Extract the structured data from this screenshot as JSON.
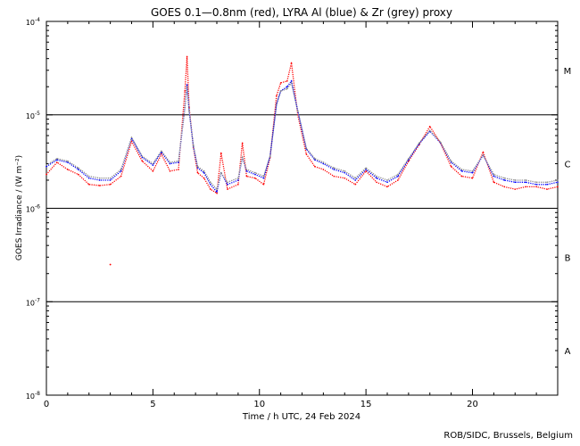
{
  "chart_data": {
    "type": "scatter",
    "title": "GOES 0.1—0.8nm (red), LYRA Al (blue) & Zr (grey) proxy",
    "xlabel": "Time / h UTC, 24 Feb 2024",
    "ylabel": "GOES Irradiance / (W m⁻²)",
    "xlim": [
      0,
      24
    ],
    "ylim": [
      1e-08,
      0.0001
    ],
    "yscale": "log",
    "x_ticks": [
      0,
      5,
      10,
      15,
      20
    ],
    "y_ticks": [
      {
        "base": "10",
        "exp": "-8",
        "value": 1e-08
      },
      {
        "base": "10",
        "exp": "-7",
        "value": 1e-07
      },
      {
        "base": "10",
        "exp": "-6",
        "value": 1e-06
      },
      {
        "base": "10",
        "exp": "-5",
        "value": 1e-05
      },
      {
        "base": "10",
        "exp": "-4",
        "value": 0.0001
      }
    ],
    "class_levels": [
      1e-07,
      1e-06,
      1e-05
    ],
    "class_labels": [
      {
        "label": "A",
        "value": 3e-08
      },
      {
        "label": "B",
        "value": 3e-07
      },
      {
        "label": "C",
        "value": 3e-06
      },
      {
        "label": "M",
        "value": 3e-05
      }
    ],
    "series": [
      {
        "name": "GOES 0.1—0.8nm",
        "color": "#ff0000",
        "x": [
          0,
          0.5,
          1,
          1.5,
          2,
          2.5,
          3,
          3.5,
          4,
          4.5,
          5,
          5.4,
          5.8,
          6.2,
          6.5,
          6.6,
          6.7,
          6.9,
          7.1,
          7.4,
          7.7,
          8,
          8.2,
          8.5,
          9,
          9.2,
          9.4,
          9.8,
          10.2,
          10.5,
          10.8,
          11,
          11.3,
          11.5,
          11.8,
          12.2,
          12.6,
          13,
          13.5,
          14,
          14.5,
          15,
          15.5,
          16,
          16.5,
          17,
          17.5,
          18,
          18.5,
          19,
          19.5,
          20,
          20.5,
          21,
          21.5,
          22,
          22.5,
          23,
          23.5,
          24
        ],
        "y": [
          2.3e-06,
          3.1e-06,
          2.6e-06,
          2.3e-06,
          1.8e-06,
          1.75e-06,
          1.8e-06,
          2.2e-06,
          5.2e-06,
          3.2e-06,
          2.5e-06,
          3.8e-06,
          2.5e-06,
          2.6e-06,
          1.8e-05,
          4.2e-05,
          1.2e-05,
          4.5e-06,
          2.4e-06,
          2.1e-06,
          1.6e-06,
          1.45e-06,
          3.9e-06,
          1.6e-06,
          1.8e-06,
          5e-06,
          2.2e-06,
          2.1e-06,
          1.8e-06,
          3.5e-06,
          1.6e-05,
          2.2e-05,
          2.3e-05,
          3.6e-05,
          1e-05,
          3.8e-06,
          2.8e-06,
          2.6e-06,
          2.2e-06,
          2.1e-06,
          1.8e-06,
          2.5e-06,
          1.9e-06,
          1.7e-06,
          2e-06,
          3.2e-06,
          4.8e-06,
          7.5e-06,
          5e-06,
          2.8e-06,
          2.2e-06,
          2.1e-06,
          4e-06,
          1.9e-06,
          1.7e-06,
          1.6e-06,
          1.7e-06,
          1.7e-06,
          1.6e-06,
          1.7e-06
        ]
      },
      {
        "name": "LYRA Al",
        "color": "#0000ff",
        "x": [
          0,
          0.5,
          1,
          1.5,
          2,
          2.5,
          3,
          3.5,
          4,
          4.5,
          5,
          5.4,
          5.8,
          6.2,
          6.5,
          6.6,
          6.7,
          6.9,
          7.1,
          7.4,
          7.7,
          8,
          8.2,
          8.5,
          9,
          9.2,
          9.4,
          9.8,
          10.2,
          10.5,
          10.8,
          11,
          11.3,
          11.5,
          11.8,
          12.2,
          12.6,
          13,
          13.5,
          14,
          14.5,
          15,
          15.5,
          16,
          16.5,
          17,
          17.5,
          18,
          18.5,
          19,
          19.5,
          20,
          20.5,
          21,
          21.5,
          22,
          22.5,
          23,
          23.5,
          24
        ],
        "y": [
          2.8e-06,
          3.3e-06,
          3.1e-06,
          2.6e-06,
          2.1e-06,
          2e-06,
          2e-06,
          2.5e-06,
          5.6e-06,
          3.5e-06,
          2.9e-06,
          4e-06,
          3e-06,
          3.1e-06,
          1.2e-05,
          2.1e-05,
          1.1e-05,
          4.6e-06,
          2.7e-06,
          2.4e-06,
          1.8e-06,
          1.5e-06,
          2.4e-06,
          1.8e-06,
          2e-06,
          3.5e-06,
          2.5e-06,
          2.3e-06,
          2.1e-06,
          3.6e-06,
          1.3e-05,
          1.8e-05,
          2e-05,
          2.3e-05,
          1.1e-05,
          4.3e-06,
          3.3e-06,
          3e-06,
          2.6e-06,
          2.4e-06,
          2e-06,
          2.6e-06,
          2.1e-06,
          1.9e-06,
          2.2e-06,
          3.3e-06,
          4.9e-06,
          6.7e-06,
          5e-06,
          3.1e-06,
          2.5e-06,
          2.4e-06,
          3.7e-06,
          2.2e-06,
          2e-06,
          1.9e-06,
          1.9e-06,
          1.8e-06,
          1.8e-06,
          1.9e-06
        ]
      },
      {
        "name": "LYRA Zr",
        "color": "#888888",
        "x": [
          0,
          0.5,
          1,
          1.5,
          2,
          2.5,
          3,
          3.5,
          4,
          4.5,
          5,
          5.4,
          5.8,
          6.2,
          6.5,
          6.6,
          6.7,
          6.9,
          7.1,
          7.4,
          7.7,
          8,
          8.2,
          8.5,
          9,
          9.2,
          9.4,
          9.8,
          10.2,
          10.5,
          10.8,
          11,
          11.3,
          11.5,
          11.8,
          12.2,
          12.6,
          13,
          13.5,
          14,
          14.5,
          15,
          15.5,
          16,
          16.5,
          17,
          17.5,
          18,
          18.5,
          19,
          19.5,
          20,
          20.5,
          21,
          21.5,
          22,
          22.5,
          23,
          23.5,
          24
        ],
        "y": [
          2.9e-06,
          3.4e-06,
          3.2e-06,
          2.7e-06,
          2.2e-06,
          2.1e-06,
          2.1e-06,
          2.6e-06,
          5.7e-06,
          3.6e-06,
          3e-06,
          4.1e-06,
          3.1e-06,
          3.2e-06,
          1.2e-05,
          2e-05,
          1.1e-05,
          4.7e-06,
          2.8e-06,
          2.5e-06,
          1.9e-06,
          1.6e-06,
          2.4e-06,
          1.9e-06,
          2.1e-06,
          3.5e-06,
          2.6e-06,
          2.4e-06,
          2.2e-06,
          3.6e-06,
          1.3e-05,
          1.8e-05,
          1.9e-05,
          2.2e-05,
          1.1e-05,
          4.4e-06,
          3.4e-06,
          3.1e-06,
          2.7e-06,
          2.5e-06,
          2.1e-06,
          2.7e-06,
          2.2e-06,
          2e-06,
          2.3e-06,
          3.4e-06,
          5e-06,
          6.8e-06,
          5.1e-06,
          3.2e-06,
          2.6e-06,
          2.5e-06,
          3.7e-06,
          2.3e-06,
          2.1e-06,
          2e-06,
          2e-06,
          1.9e-06,
          1.9e-06,
          2e-06
        ]
      }
    ],
    "isolated_points": [
      {
        "x": 3.0,
        "y": 2.5e-07,
        "color": "#ff0000"
      }
    ]
  },
  "credit": "ROB/SIDC, Brussels, Belgium"
}
